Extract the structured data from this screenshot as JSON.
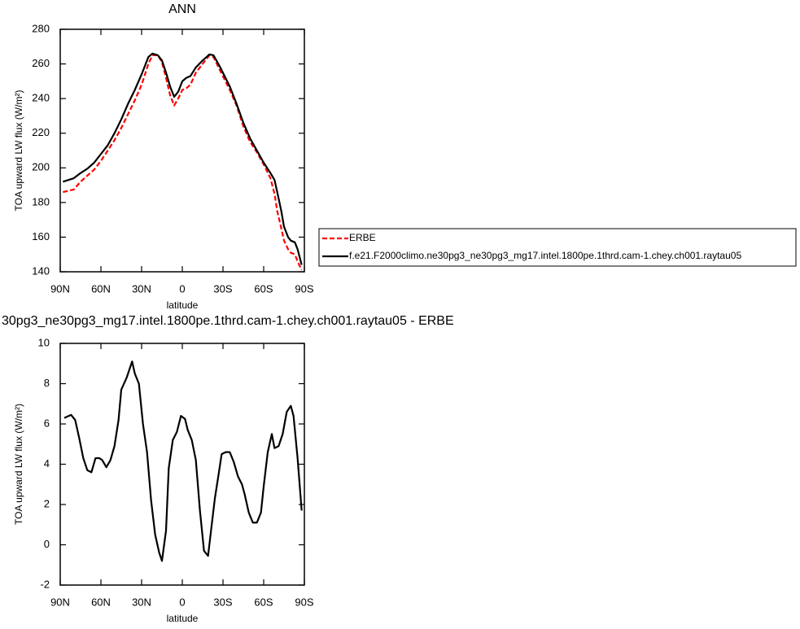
{
  "chart_data": [
    {
      "type": "line",
      "title": "ANN",
      "xlabel": "latitude",
      "ylabel": "TOA upward LW flux (W/m²)",
      "x": [
        88,
        80,
        75,
        70,
        65,
        60,
        55,
        50,
        45,
        40,
        35,
        30,
        25,
        22,
        18,
        15,
        12,
        9,
        6,
        3,
        0,
        -3,
        -6,
        -10,
        -15,
        -20,
        -23,
        -28,
        -35,
        -40,
        -45,
        -50,
        -55,
        -60,
        -65,
        -68,
        -70,
        -73,
        -75,
        -78,
        -80,
        -83,
        -85,
        -88
      ],
      "series": [
        {
          "name": "ERBE",
          "color": "#ff0000",
          "dashed": true,
          "values": [
            186,
            187.5,
            192,
            195.5,
            199,
            204,
            210,
            216,
            223,
            231,
            239,
            248,
            260,
            265,
            265,
            261,
            252,
            242,
            236,
            240,
            245,
            246,
            248,
            255,
            260,
            265,
            264,
            256,
            245,
            236,
            224,
            215,
            209,
            202,
            194,
            185,
            175,
            165,
            158,
            153,
            151,
            150,
            146,
            141
          ]
        },
        {
          "name": "f.e21.F2000climo.ne30pg3_ne30pg3_mg17.intel.1800pe.1thrd.cam-1.chey.ch001.raytau05",
          "color": "#000000",
          "dashed": false,
          "values": [
            192,
            194,
            197,
            199.5,
            203,
            208,
            213,
            220,
            228,
            237,
            245,
            254,
            264,
            266,
            265,
            262,
            255,
            247,
            241,
            244,
            250,
            252,
            253,
            258,
            262,
            265.5,
            265,
            258,
            247,
            237,
            226,
            217,
            210,
            203,
            197,
            193,
            186,
            175,
            166,
            160,
            158,
            157,
            153,
            144
          ]
        }
      ],
      "xlim": [
        90,
        -90
      ],
      "ylim": [
        140,
        280
      ],
      "xticks": [
        {
          "value": 90,
          "label": "90N"
        },
        {
          "value": 60,
          "label": "60N"
        },
        {
          "value": 30,
          "label": "30N"
        },
        0,
        {
          "value": -30,
          "label": "30S"
        },
        {
          "value": -60,
          "label": "60S"
        },
        {
          "value": -90,
          "label": "90S"
        }
      ],
      "yticks": [
        140,
        160,
        180,
        200,
        220,
        240,
        260,
        280
      ]
    },
    {
      "type": "line",
      "title": "30pg3_ne30pg3_mg17.intel.1800pe.1thrd.cam-1.chey.ch001.raytau05 - ERBE",
      "xlabel": "latitude",
      "ylabel": "TOA upward LW flux (W/m²)",
      "x": [
        87,
        82,
        79,
        76,
        73,
        70,
        67,
        64,
        61,
        59,
        56,
        53,
        50,
        47,
        45,
        41,
        37,
        35,
        32,
        29,
        26,
        23,
        20,
        17,
        15,
        12,
        10,
        7,
        4,
        1,
        -2,
        -4,
        -7,
        -10,
        -13,
        -16,
        -19,
        -21,
        -24,
        -27,
        -29,
        -32,
        -35,
        -38,
        -41,
        -44,
        -46,
        -49,
        -52,
        -55,
        -58,
        -60,
        -63,
        -66,
        -68,
        -71,
        -74,
        -77,
        -80,
        -82,
        -85,
        -88
      ],
      "values": [
        6.3,
        6.45,
        6.2,
        5.3,
        4.3,
        3.7,
        3.6,
        4.3,
        4.3,
        4.2,
        3.85,
        4.2,
        4.9,
        6.2,
        7.7,
        8.3,
        9.1,
        8.5,
        8.0,
        6.0,
        4.6,
        2.2,
        0.5,
        -0.4,
        -0.8,
        0.7,
        3.8,
        5.2,
        5.6,
        6.4,
        6.25,
        5.7,
        5.2,
        4.2,
        1.7,
        -0.3,
        -0.55,
        0.6,
        2.3,
        3.6,
        4.5,
        4.6,
        4.6,
        4.1,
        3.4,
        3.0,
        2.5,
        1.6,
        1.1,
        1.1,
        1.6,
        2.9,
        4.6,
        5.5,
        4.8,
        4.9,
        5.5,
        6.6,
        6.9,
        6.4,
        4.3,
        1.7
      ],
      "color": "#000000",
      "xlim": [
        90,
        -90
      ],
      "ylim": [
        -2,
        10
      ],
      "xticks": [
        {
          "value": 90,
          "label": "90N"
        },
        {
          "value": 60,
          "label": "60N"
        },
        {
          "value": 30,
          "label": "30N"
        },
        0,
        {
          "value": -30,
          "label": "30S"
        },
        {
          "value": -60,
          "label": "60S"
        },
        {
          "value": -90,
          "label": "90S"
        }
      ],
      "yticks": [
        -2,
        0,
        2,
        4,
        6,
        8,
        10
      ]
    }
  ]
}
